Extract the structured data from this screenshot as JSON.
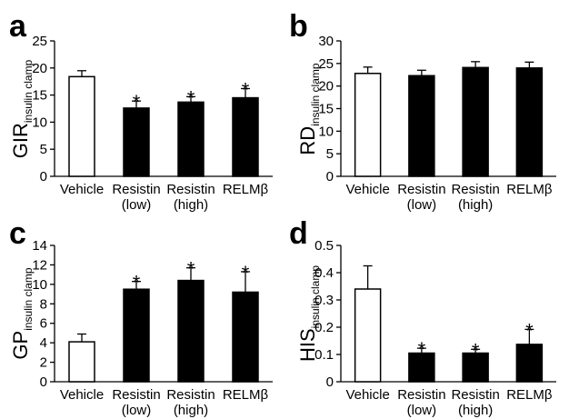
{
  "chart_data": [
    {
      "id": "a",
      "panel_label": "a",
      "type": "bar",
      "ylabel": {
        "main": "GIR",
        "sub": "insulin clamp"
      },
      "ylim": [
        0,
        25
      ],
      "yticks": [
        0,
        5,
        10,
        15,
        20,
        25
      ],
      "categories": [
        {
          "line1": "Vehicle",
          "line2": ""
        },
        {
          "line1": "Resistin",
          "line2": "(low)"
        },
        {
          "line1": "Resistin",
          "line2": "(high)"
        },
        {
          "line1": "RELMβ",
          "line2": ""
        }
      ],
      "values": [
        18.4,
        12.6,
        13.7,
        14.5
      ],
      "errors": [
        1.1,
        1.3,
        1.0,
        1.7
      ],
      "fills": [
        "#ffffff",
        "#000000",
        "#000000",
        "#000000"
      ],
      "significant": [
        false,
        true,
        true,
        true
      ],
      "marker": "*"
    },
    {
      "id": "b",
      "panel_label": "b",
      "type": "bar",
      "ylabel": {
        "main": "RD",
        "sub": "insulin clamp"
      },
      "ylim": [
        0,
        30
      ],
      "yticks": [
        0,
        5,
        10,
        15,
        20,
        25,
        30
      ],
      "categories": [
        {
          "line1": "Vehicle",
          "line2": ""
        },
        {
          "line1": "Resistin",
          "line2": "(low)"
        },
        {
          "line1": "Resistin",
          "line2": "(high)"
        },
        {
          "line1": "RELMβ",
          "line2": ""
        }
      ],
      "values": [
        22.8,
        22.3,
        24.1,
        24.0
      ],
      "errors": [
        1.4,
        1.2,
        1.3,
        1.3
      ],
      "fills": [
        "#ffffff",
        "#000000",
        "#000000",
        "#000000"
      ],
      "significant": [
        false,
        false,
        false,
        false
      ],
      "marker": "*"
    },
    {
      "id": "c",
      "panel_label": "c",
      "type": "bar",
      "ylabel": {
        "main": "GP",
        "sub": "insulin clamp"
      },
      "ylim": [
        0,
        14
      ],
      "yticks": [
        0,
        2,
        4,
        6,
        8,
        10,
        12,
        14
      ],
      "categories": [
        {
          "line1": "Vehicle",
          "line2": ""
        },
        {
          "line1": "Resistin",
          "line2": "(low)"
        },
        {
          "line1": "Resistin",
          "line2": "(high)"
        },
        {
          "line1": "RELMβ",
          "line2": ""
        }
      ],
      "values": [
        4.1,
        9.5,
        10.4,
        9.2
      ],
      "errors": [
        0.8,
        0.8,
        1.3,
        2.1
      ],
      "fills": [
        "#ffffff",
        "#000000",
        "#000000",
        "#000000"
      ],
      "significant": [
        false,
        true,
        true,
        true
      ],
      "marker": "*"
    },
    {
      "id": "d",
      "panel_label": "d",
      "type": "bar",
      "ylabel": {
        "main": "HIS",
        "sub": "insulin clamp"
      },
      "ylim": [
        0,
        0.5
      ],
      "yticks": [
        0,
        0.1,
        0.2,
        0.3,
        0.4,
        0.5
      ],
      "categories": [
        {
          "line1": "Vehicle",
          "line2": ""
        },
        {
          "line1": "Resistin",
          "line2": "(low)"
        },
        {
          "line1": "Resistin",
          "line2": "(high)"
        },
        {
          "line1": "RELMβ",
          "line2": ""
        }
      ],
      "values": [
        0.34,
        0.105,
        0.105,
        0.137
      ],
      "errors": [
        0.085,
        0.018,
        0.014,
        0.055
      ],
      "fills": [
        "#ffffff",
        "#000000",
        "#000000",
        "#000000"
      ],
      "significant": [
        false,
        true,
        true,
        true
      ],
      "marker": "*"
    }
  ]
}
